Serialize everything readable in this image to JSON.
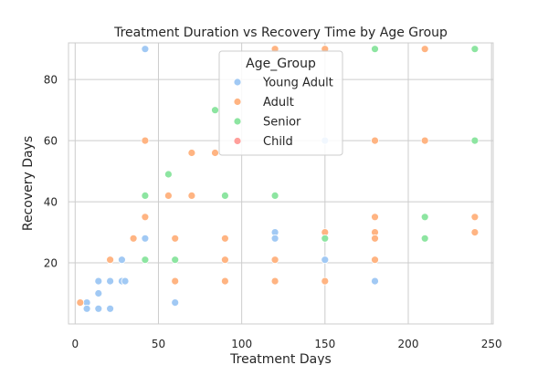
{
  "chart_data": {
    "type": "scatter",
    "title": "Treatment Duration vs Recovery Time by Age Group",
    "xlabel": "Treatment Days",
    "ylabel": "Recovery Days",
    "xlim": [
      -4,
      251
    ],
    "ylim": [
      0,
      92
    ],
    "xticks": [
      0,
      50,
      100,
      150,
      200,
      250
    ],
    "yticks": [
      20,
      40,
      60,
      80
    ],
    "grid": true,
    "legend": {
      "title": "Age_Group",
      "placement": "top-center"
    },
    "series": [
      {
        "name": "Young Adult",
        "color": "#a1c9f4",
        "points": [
          [
            42,
            90
          ],
          [
            7,
            7
          ],
          [
            14,
            14
          ],
          [
            14,
            10
          ],
          [
            21,
            14
          ],
          [
            28,
            21
          ],
          [
            28,
            14
          ],
          [
            30,
            14
          ],
          [
            7,
            5
          ],
          [
            14,
            5
          ],
          [
            21,
            5
          ],
          [
            42,
            28
          ],
          [
            60,
            7
          ],
          [
            120,
            30
          ],
          [
            120,
            28
          ],
          [
            150,
            21
          ],
          [
            180,
            14
          ],
          [
            150,
            60
          ]
        ]
      },
      {
        "name": "Adult",
        "color": "#ffb482",
        "points": [
          [
            3,
            7
          ],
          [
            21,
            21
          ],
          [
            35,
            28
          ],
          [
            42,
            35
          ],
          [
            42,
            60
          ],
          [
            56,
            42
          ],
          [
            60,
            28
          ],
          [
            60,
            14
          ],
          [
            70,
            56
          ],
          [
            70,
            42
          ],
          [
            84,
            56
          ],
          [
            90,
            28
          ],
          [
            90,
            21
          ],
          [
            90,
            14
          ],
          [
            120,
            90
          ],
          [
            120,
            21
          ],
          [
            120,
            14
          ],
          [
            150,
            90
          ],
          [
            150,
            30
          ],
          [
            150,
            14
          ],
          [
            180,
            60
          ],
          [
            180,
            35
          ],
          [
            180,
            30
          ],
          [
            180,
            28
          ],
          [
            180,
            21
          ],
          [
            210,
            90
          ],
          [
            210,
            60
          ],
          [
            240,
            35
          ],
          [
            240,
            30
          ]
        ]
      },
      {
        "name": "Senior",
        "color": "#8de5a1",
        "points": [
          [
            42,
            42
          ],
          [
            42,
            21
          ],
          [
            56,
            49
          ],
          [
            60,
            21
          ],
          [
            84,
            70
          ],
          [
            90,
            42
          ],
          [
            120,
            42
          ],
          [
            150,
            28
          ],
          [
            180,
            90
          ],
          [
            210,
            35
          ],
          [
            210,
            28
          ],
          [
            240,
            90
          ],
          [
            240,
            60
          ]
        ]
      },
      {
        "name": "Child",
        "color": "#ff9f9b",
        "points": []
      }
    ]
  }
}
